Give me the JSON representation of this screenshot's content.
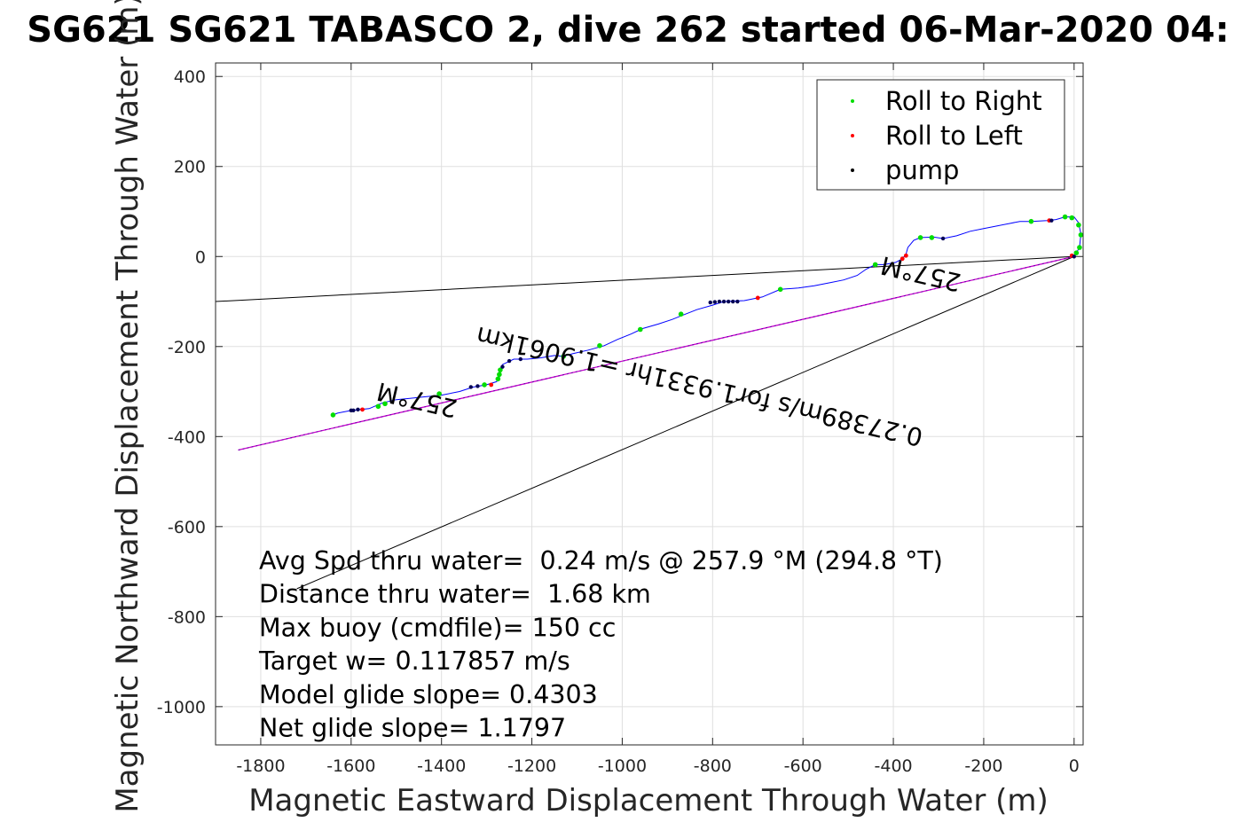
{
  "chart_data": {
    "type": "scatter",
    "title": "SG621 SG621 TABASCO 2, dive 262 started 06-Mar-2020 04:",
    "xlabel": "Magnetic Eastward Displacement Through Water (m)",
    "ylabel": "Magnetic Northward Displacement Through Water (m)",
    "xlim": [
      -1900,
      20
    ],
    "ylim": [
      -1085,
      430
    ],
    "xticks": [
      -1800,
      -1600,
      -1400,
      -1200,
      -1000,
      -800,
      -600,
      -400,
      -200,
      0
    ],
    "yticks": [
      400,
      200,
      0,
      -200,
      -400,
      -600,
      -800,
      -1000
    ],
    "grid": true,
    "legend_position": "top-right",
    "series": [
      {
        "name": "Roll to Right",
        "color": "#00dd00",
        "marker": "dot"
      },
      {
        "name": "Roll to Left",
        "color": "#ff0000",
        "marker": "dot"
      },
      {
        "name": "pump",
        "color": "#000000",
        "marker": "dot"
      }
    ],
    "track": [
      [
        0,
        0
      ],
      [
        12,
        20
      ],
      [
        15,
        50
      ],
      [
        10,
        75
      ],
      [
        0,
        88
      ],
      [
        -20,
        88
      ],
      [
        -40,
        82
      ],
      [
        -60,
        80
      ],
      [
        -95,
        78
      ],
      [
        -120,
        78
      ],
      [
        -140,
        74
      ],
      [
        -170,
        68
      ],
      [
        -200,
        62
      ],
      [
        -230,
        56
      ],
      [
        -260,
        46
      ],
      [
        -290,
        40
      ],
      [
        -310,
        43
      ],
      [
        -340,
        42
      ],
      [
        -355,
        36
      ],
      [
        -368,
        20
      ],
      [
        -372,
        5
      ],
      [
        -380,
        -5
      ],
      [
        -395,
        -13
      ],
      [
        -420,
        -18
      ],
      [
        -440,
        -18
      ],
      [
        -460,
        -28
      ],
      [
        -480,
        -42
      ],
      [
        -510,
        -52
      ],
      [
        -540,
        -58
      ],
      [
        -575,
        -65
      ],
      [
        -610,
        -70
      ],
      [
        -650,
        -73
      ],
      [
        -690,
        -90
      ],
      [
        -730,
        -98
      ],
      [
        -775,
        -100
      ],
      [
        -800,
        -108
      ],
      [
        -835,
        -118
      ],
      [
        -860,
        -128
      ],
      [
        -890,
        -140
      ],
      [
        -920,
        -150
      ],
      [
        -955,
        -160
      ],
      [
        -980,
        -172
      ],
      [
        -1010,
        -184
      ],
      [
        -1040,
        -198
      ],
      [
        -1075,
        -208
      ],
      [
        -1110,
        -216
      ],
      [
        -1130,
        -222
      ],
      [
        -1150,
        -220
      ],
      [
        -1180,
        -225
      ],
      [
        -1210,
        -228
      ],
      [
        -1240,
        -228
      ],
      [
        -1265,
        -240
      ],
      [
        -1270,
        -255
      ],
      [
        -1272,
        -270
      ],
      [
        -1278,
        -278
      ],
      [
        -1300,
        -285
      ],
      [
        -1330,
        -290
      ],
      [
        -1360,
        -300
      ],
      [
        -1400,
        -308
      ],
      [
        -1440,
        -312
      ],
      [
        -1470,
        -315
      ],
      [
        -1500,
        -318
      ],
      [
        -1530,
        -325
      ],
      [
        -1560,
        -338
      ],
      [
        -1600,
        -342
      ],
      [
        -1630,
        -348
      ],
      [
        -1640,
        -352
      ]
    ],
    "roll_right_points": [
      [
        -1640,
        -352
      ],
      [
        -1540,
        -333
      ],
      [
        -1525,
        -327
      ],
      [
        -1405,
        -305
      ],
      [
        -1305,
        -285
      ],
      [
        -1275,
        -272
      ],
      [
        -1272,
        -262
      ],
      [
        -1270,
        -252
      ],
      [
        -1130,
        -222
      ],
      [
        -1050,
        -198
      ],
      [
        -960,
        -162
      ],
      [
        -870,
        -128
      ],
      [
        -650,
        -73
      ],
      [
        -440,
        -18
      ],
      [
        -315,
        42
      ],
      [
        -340,
        42
      ],
      [
        -95,
        78
      ],
      [
        -20,
        88
      ],
      [
        -5,
        86
      ],
      [
        10,
        70
      ],
      [
        15,
        48
      ],
      [
        12,
        20
      ],
      [
        5,
        8
      ]
    ],
    "roll_left_points": [
      [
        -1575,
        -340
      ],
      [
        -1290,
        -285
      ],
      [
        -700,
        -92
      ],
      [
        -380,
        -5
      ],
      [
        -372,
        2
      ],
      [
        -55,
        80
      ],
      [
        -5,
        2
      ]
    ],
    "pump_points": [
      [
        -1600,
        -342
      ],
      [
        -1595,
        -342
      ],
      [
        -1585,
        -340
      ],
      [
        -1335,
        -290
      ],
      [
        -1320,
        -288
      ],
      [
        -1265,
        -245
      ],
      [
        -1250,
        -232
      ],
      [
        -1225,
        -228
      ],
      [
        -805,
        -102
      ],
      [
        -795,
        -101
      ],
      [
        -785,
        -100
      ],
      [
        -775,
        -100
      ],
      [
        -765,
        -100
      ],
      [
        -755,
        -100
      ],
      [
        -745,
        -100
      ],
      [
        -290,
        40
      ],
      [
        -50,
        80
      ],
      [
        0,
        0
      ]
    ],
    "reference_lines": [
      {
        "from": [
          0,
          0
        ],
        "to": [
          -1900,
          -100
        ]
      },
      {
        "from": [
          0,
          0
        ],
        "to": [
          -1720,
          -738
        ]
      }
    ],
    "current_line": {
      "from": [
        0,
        0
      ],
      "to": [
        -1850,
        -430
      ]
    },
    "annotations": [
      {
        "text": "257°M",
        "at": [
          -1450,
          -300
        ],
        "rotation_deg": 193
      },
      {
        "text": "257°M",
        "at": [
          -335,
          -20
        ],
        "rotation_deg": 193
      },
      {
        "text": "0.27389m/s for1.9331hr =1.9061km",
        "at": [
          -825,
          -270
        ],
        "rotation_deg": 193
      }
    ],
    "stats": [
      "Avg Spd thru water=  0.24 m/s @ 257.9 °M (294.8 °T)",
      "Distance thru water=  1.68 km",
      "Max buoy (cmdfile)= 150 cc",
      "Target w= 0.117857 m/s",
      "Model glide slope= 0.4303",
      "Net glide slope= 1.1797"
    ]
  }
}
